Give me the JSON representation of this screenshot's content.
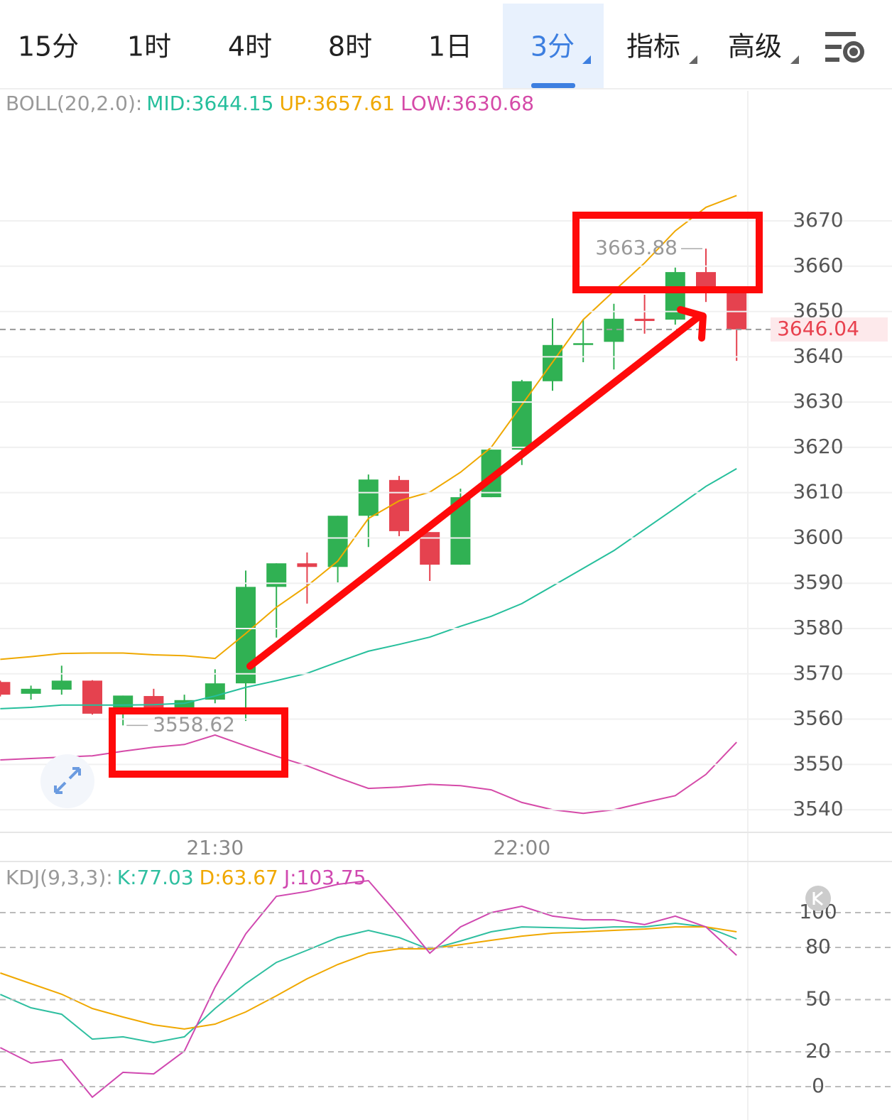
{
  "tabs": [
    "15分",
    "1时",
    "4时",
    "8时",
    "1日",
    "3分",
    "指标",
    "高级"
  ],
  "active_tab": 5,
  "chart_data": [
    {
      "type": "candlestick",
      "title": "BOLL(20,2.0):",
      "categories": [
        null,
        null,
        null,
        null,
        null,
        null,
        null,
        "21:30",
        null,
        null,
        null,
        null,
        null,
        null,
        null,
        null,
        null,
        "22:00",
        null,
        null,
        null,
        null,
        null,
        null,
        null
      ],
      "open": [
        3568.2,
        3565.6,
        3566.5,
        3568.5,
        3562.3,
        3565.1,
        3562.4,
        3564.3,
        3567.9,
        3589.2,
        3594.4,
        3593.6,
        3604.9,
        3612.8,
        3601.3,
        3594.1,
        3609.0,
        3619.5,
        3634.6,
        3642.6,
        3643.3,
        3648.4,
        3648.2,
        3658.7,
        3654.5
      ],
      "high": [
        3568.5,
        3567.4,
        3571.8,
        3568.6,
        3565.2,
        3566.7,
        3565.4,
        3571.0,
        3592.8,
        3594.4,
        3596.8,
        3604.9,
        3614.0,
        3613.7,
        3601.3,
        3610.9,
        3619.5,
        3634.9,
        3648.5,
        3648.2,
        3651.7,
        3653.7,
        3659.7,
        3663.88,
        3654.5
      ],
      "low": [
        3565.0,
        3564.3,
        3565.4,
        3561.0,
        3558.62,
        3562.3,
        3562.3,
        3563.5,
        3559.6,
        3578.0,
        3585.5,
        3590.2,
        3598.0,
        3600.4,
        3590.5,
        3594.1,
        3609.0,
        3616.1,
        3632.5,
        3638.8,
        3637.2,
        3645.1,
        3647.1,
        3652.1,
        3639.1
      ],
      "close": [
        3565.4,
        3566.7,
        3568.5,
        3561.2,
        3565.2,
        3562.6,
        3564.2,
        3567.9,
        3589.2,
        3594.4,
        3593.6,
        3604.9,
        3612.9,
        3601.5,
        3594.1,
        3609.0,
        3619.5,
        3634.6,
        3642.6,
        3643.0,
        3648.4,
        3647.9,
        3658.7,
        3654.5,
        3646.04
      ],
      "up_color": "#30b153",
      "down_color": "#e5424f",
      "series": [
        {
          "name": "MID:3644.15",
          "color": "#26bf9c",
          "values": [
            3562.3,
            3562.6,
            3563.1,
            3563.1,
            3563.1,
            3563.2,
            3563.5,
            3565.1,
            3567.0,
            3568.5,
            3570.1,
            3572.6,
            3575.0,
            3576.5,
            3578.1,
            3580.5,
            3582.7,
            3585.5,
            3589.4,
            3593.3,
            3597.2,
            3601.9,
            3606.6,
            3611.4,
            3615.3
          ]
        },
        {
          "name": "UP:3657.61",
          "color": "#efa800",
          "values": [
            3573.2,
            3573.8,
            3574.5,
            3574.6,
            3574.6,
            3574.2,
            3574.0,
            3573.4,
            3578.9,
            3584.7,
            3589.4,
            3594.9,
            3604.3,
            3608.2,
            3610.1,
            3614.5,
            3620.0,
            3629.4,
            3638.8,
            3648.2,
            3654.5,
            3660.7,
            3667.8,
            3673.0,
            3675.6
          ]
        },
        {
          "name": "LOW:3630.68",
          "color": "#d54aa8",
          "values": [
            3551.0,
            3551.3,
            3551.6,
            3551.9,
            3552.9,
            3553.8,
            3554.4,
            3556.5,
            3554.1,
            3551.8,
            3549.7,
            3547.1,
            3544.7,
            3545.0,
            3545.6,
            3545.3,
            3544.4,
            3541.6,
            3540.0,
            3539.2,
            3540.0,
            3541.6,
            3543.1,
            3547.8,
            3554.9
          ]
        }
      ],
      "ylim": [
        3535.0,
        3698.7
      ],
      "yticks": [
        3540,
        3550,
        3560,
        3570,
        3580,
        3590,
        3600,
        3610,
        3620,
        3630,
        3640,
        3650,
        3660,
        3670
      ],
      "grid": true
    },
    {
      "type": "line",
      "title": "KDJ(9,3,3):",
      "series": [
        {
          "name": "K:77.03",
          "color": "#2fbfa0",
          "values": [
            53.0,
            45.3,
            41.6,
            27.3,
            28.6,
            25.3,
            28.6,
            44.9,
            59.2,
            71.4,
            78.4,
            85.7,
            89.8,
            85.7,
            78.8,
            83.7,
            89.0,
            91.8,
            91.4,
            91.0,
            91.8,
            91.8,
            93.9,
            91.8,
            84.9
          ]
        },
        {
          "name": "D:63.67",
          "color": "#f0a800",
          "values": [
            65.3,
            59.2,
            53.1,
            44.9,
            40.0,
            35.5,
            33.1,
            35.9,
            42.9,
            52.2,
            62.0,
            70.2,
            76.7,
            79.2,
            79.2,
            81.6,
            84.1,
            86.5,
            88.2,
            89.0,
            89.8,
            90.6,
            91.8,
            91.8,
            89.0
          ]
        },
        {
          "name": "J:103.75",
          "color": "#d048b0",
          "values": [
            22.4,
            13.5,
            15.5,
            -6.1,
            8.2,
            7.3,
            20.4,
            57.1,
            87.8,
            109.4,
            112.2,
            116.3,
            118.4,
            98.0,
            76.7,
            91.8,
            100.0,
            103.7,
            98.0,
            95.9,
            95.9,
            93.1,
            98.0,
            91.8,
            75.5
          ]
        }
      ],
      "ylim": [
        -19.2,
        128.6
      ],
      "yticks": [
        0,
        20,
        50,
        80,
        100
      ],
      "grid": true
    }
  ]
}
